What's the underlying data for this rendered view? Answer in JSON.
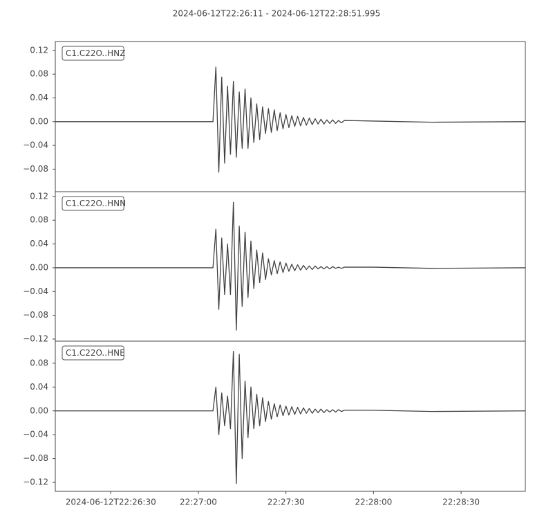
{
  "chart_data": [
    {
      "type": "line",
      "title": "2024-06-12T22:26:11  -  2024-06-12T22:28:51.995",
      "xlim": [
        "22:26:11",
        "22:28:51.995"
      ],
      "x": [
        "22:26:11",
        "22:27:05",
        "22:27:06",
        "22:27:07",
        "22:27:08",
        "22:27:09",
        "22:27:10",
        "22:27:11",
        "22:27:12",
        "22:27:13",
        "22:27:14",
        "22:27:15",
        "22:27:16",
        "22:27:17",
        "22:27:18",
        "22:27:19",
        "22:27:20",
        "22:27:21",
        "22:27:22",
        "22:27:23",
        "22:27:24",
        "22:27:25",
        "22:27:26",
        "22:27:27",
        "22:27:28",
        "22:27:29",
        "22:27:30",
        "22:27:31",
        "22:27:32",
        "22:27:33",
        "22:27:34",
        "22:27:35",
        "22:27:36",
        "22:27:37",
        "22:27:38",
        "22:27:39",
        "22:27:40",
        "22:27:41",
        "22:27:42",
        "22:27:43",
        "22:27:44",
        "22:27:45",
        "22:27:46",
        "22:27:47",
        "22:27:48",
        "22:27:49",
        "22:27:50",
        "22:28:00",
        "22:28:20",
        "22:28:51.995"
      ],
      "series": [
        {
          "name": "C1.C22O..HNZ",
          "color": "#404040",
          "values": [
            0,
            0,
            0.092,
            -0.085,
            0.075,
            -0.07,
            0.06,
            -0.055,
            0.068,
            -0.06,
            0.05,
            -0.045,
            0.055,
            -0.045,
            0.04,
            -0.035,
            0.03,
            -0.03,
            0.025,
            -0.02,
            0.022,
            -0.018,
            0.02,
            -0.015,
            0.015,
            -0.012,
            0.012,
            -0.01,
            0.01,
            -0.008,
            0.009,
            -0.007,
            0.007,
            -0.006,
            0.006,
            -0.005,
            0.005,
            -0.004,
            0.004,
            -0.004,
            0.003,
            -0.003,
            0.003,
            -0.003,
            0.002,
            -0.002,
            0.002,
            0.001,
            -0.001,
            0
          ]
        }
      ],
      "ylim": [
        -0.118,
        0.135
      ],
      "yticks": [
        {
          "value": -0.08,
          "label": "−0.08"
        },
        {
          "value": -0.04,
          "label": "−0.04"
        },
        {
          "value": 0,
          "label": "0.00"
        },
        0.04,
        0.08,
        0.12
      ]
    },
    {
      "type": "line",
      "xlim": [
        "22:26:11",
        "22:28:51.995"
      ],
      "x": [
        "22:26:11",
        "22:27:05",
        "22:27:06",
        "22:27:07",
        "22:27:08",
        "22:27:09",
        "22:27:10",
        "22:27:11",
        "22:27:12",
        "22:27:13",
        "22:27:14",
        "22:27:15",
        "22:27:16",
        "22:27:17",
        "22:27:18",
        "22:27:19",
        "22:27:20",
        "22:27:21",
        "22:27:22",
        "22:27:23",
        "22:27:24",
        "22:27:25",
        "22:27:26",
        "22:27:27",
        "22:27:28",
        "22:27:29",
        "22:27:30",
        "22:27:31",
        "22:27:32",
        "22:27:33",
        "22:27:34",
        "22:27:35",
        "22:27:36",
        "22:27:37",
        "22:27:38",
        "22:27:39",
        "22:27:40",
        "22:27:41",
        "22:27:42",
        "22:27:43",
        "22:27:44",
        "22:27:45",
        "22:27:46",
        "22:27:47",
        "22:27:48",
        "22:27:49",
        "22:27:50",
        "22:28:00",
        "22:28:20",
        "22:28:51.995"
      ],
      "series": [
        {
          "name": "C1.C22O..HNN",
          "color": "#404040",
          "values": [
            0,
            0,
            0.065,
            -0.07,
            0.05,
            -0.045,
            0.04,
            -0.045,
            0.11,
            -0.105,
            0.07,
            -0.065,
            0.06,
            -0.05,
            0.045,
            -0.035,
            0.03,
            -0.025,
            0.025,
            -0.02,
            0.015,
            -0.012,
            0.012,
            -0.01,
            0.01,
            -0.008,
            0.008,
            -0.006,
            0.006,
            -0.005,
            0.005,
            -0.004,
            0.004,
            -0.003,
            0.003,
            -0.003,
            0.003,
            -0.002,
            0.002,
            -0.002,
            0.002,
            -0.002,
            0.002,
            -0.001,
            0.001,
            -0.001,
            0.001,
            0.001,
            -0.001,
            0
          ]
        }
      ],
      "ylim": [
        -0.1235,
        0.128
      ],
      "yticks": [
        {
          "value": -0.12,
          "label": "−0.12"
        },
        {
          "value": -0.08,
          "label": "−0.08"
        },
        {
          "value": -0.04,
          "label": "−0.04"
        },
        {
          "value": 0,
          "label": "0.00"
        },
        0.04,
        0.08,
        0.12
      ]
    },
    {
      "type": "line",
      "xlim": [
        "22:26:11",
        "22:28:51.995"
      ],
      "xticks": [
        {
          "value": "22:26:30",
          "label": "2024-06-12T22:26:30"
        },
        "22:27:00",
        "22:27:30",
        "22:28:00",
        "22:28:30"
      ],
      "x": [
        "22:26:11",
        "22:27:05",
        "22:27:06",
        "22:27:07",
        "22:27:08",
        "22:27:09",
        "22:27:10",
        "22:27:11",
        "22:27:12",
        "22:27:13",
        "22:27:14",
        "22:27:15",
        "22:27:16",
        "22:27:17",
        "22:27:18",
        "22:27:19",
        "22:27:20",
        "22:27:21",
        "22:27:22",
        "22:27:23",
        "22:27:24",
        "22:27:25",
        "22:27:26",
        "22:27:27",
        "22:27:28",
        "22:27:29",
        "22:27:30",
        "22:27:31",
        "22:27:32",
        "22:27:33",
        "22:27:34",
        "22:27:35",
        "22:27:36",
        "22:27:37",
        "22:27:38",
        "22:27:39",
        "22:27:40",
        "22:27:41",
        "22:27:42",
        "22:27:43",
        "22:27:44",
        "22:27:45",
        "22:27:46",
        "22:27:47",
        "22:27:48",
        "22:27:49",
        "22:27:50",
        "22:28:00",
        "22:28:20",
        "22:28:51.995"
      ],
      "series": [
        {
          "name": "C1.C22O..HNE",
          "color": "#404040",
          "values": [
            0,
            0,
            0.04,
            -0.04,
            0.03,
            -0.025,
            0.025,
            -0.03,
            0.1,
            -0.122,
            0.095,
            -0.08,
            0.05,
            -0.045,
            0.04,
            -0.03,
            0.028,
            -0.025,
            0.022,
            -0.018,
            0.016,
            -0.014,
            0.012,
            -0.01,
            0.01,
            -0.008,
            0.008,
            -0.007,
            0.007,
            -0.006,
            0.006,
            -0.005,
            0.005,
            -0.004,
            0.004,
            -0.004,
            0.003,
            -0.003,
            0.003,
            -0.003,
            0.002,
            -0.002,
            0.002,
            -0.002,
            0.002,
            -0.001,
            0.001,
            0.001,
            -0.001,
            0
          ]
        }
      ],
      "ylim": [
        -0.135,
        0.117
      ],
      "yticks": [
        {
          "value": -0.12,
          "label": "−0.12"
        },
        {
          "value": -0.08,
          "label": "−0.08"
        },
        {
          "value": -0.04,
          "label": "−0.04"
        },
        {
          "value": 0,
          "label": "0.00"
        },
        0.04,
        0.08
      ]
    }
  ]
}
